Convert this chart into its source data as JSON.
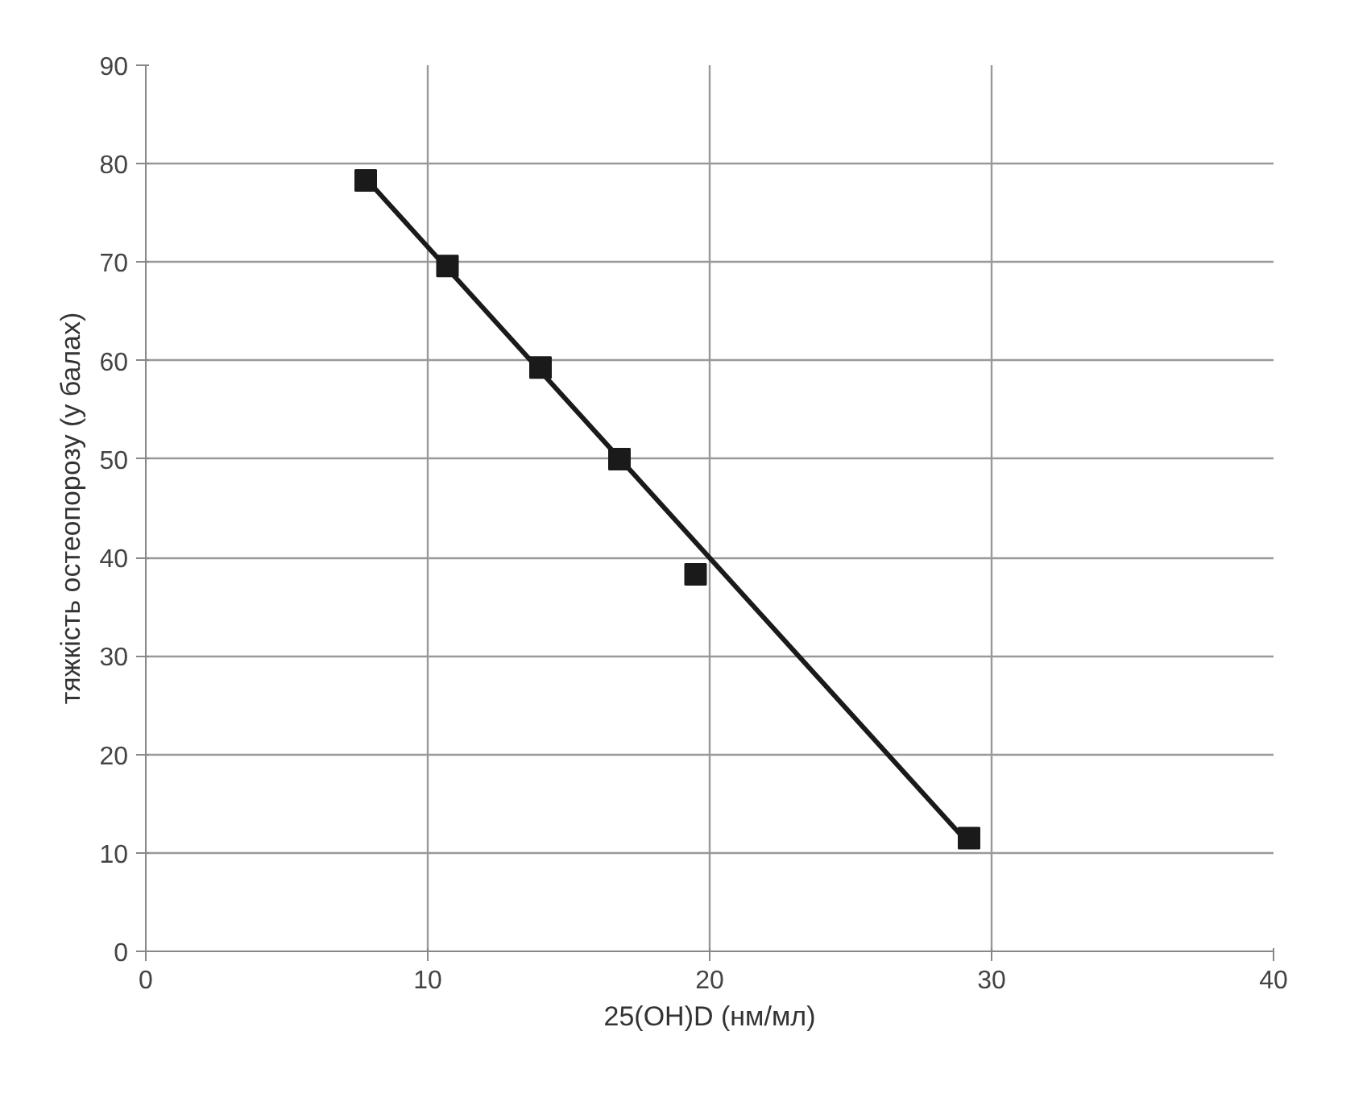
{
  "chart_data": {
    "type": "scatter",
    "xlabel": "25(OH)D (нм/мл)",
    "ylabel": "тяжкість остеопорозу (у балах)",
    "xlim": [
      0,
      40
    ],
    "xticks": [
      0,
      10,
      20,
      30,
      40
    ],
    "ylim": [
      0,
      90
    ],
    "yticks": [
      0,
      10,
      20,
      30,
      40,
      50,
      60,
      70,
      80,
      90
    ],
    "grid": true,
    "marker": "square",
    "series": [
      {
        "color": "#1a1a1a",
        "x": [
          7.8,
          10.7,
          14.0,
          16.8,
          19.5,
          29.2
        ],
        "values": [
          78.3,
          69.6,
          59.3,
          50,
          38.3,
          11.5
        ]
      },
      {
        "type": "line",
        "color": "#1a1a1a",
        "x": [
          7.8,
          29.2
        ],
        "values": [
          78.5,
          10.9
        ],
        "line_style": "solid",
        "marker": "none"
      }
    ]
  }
}
